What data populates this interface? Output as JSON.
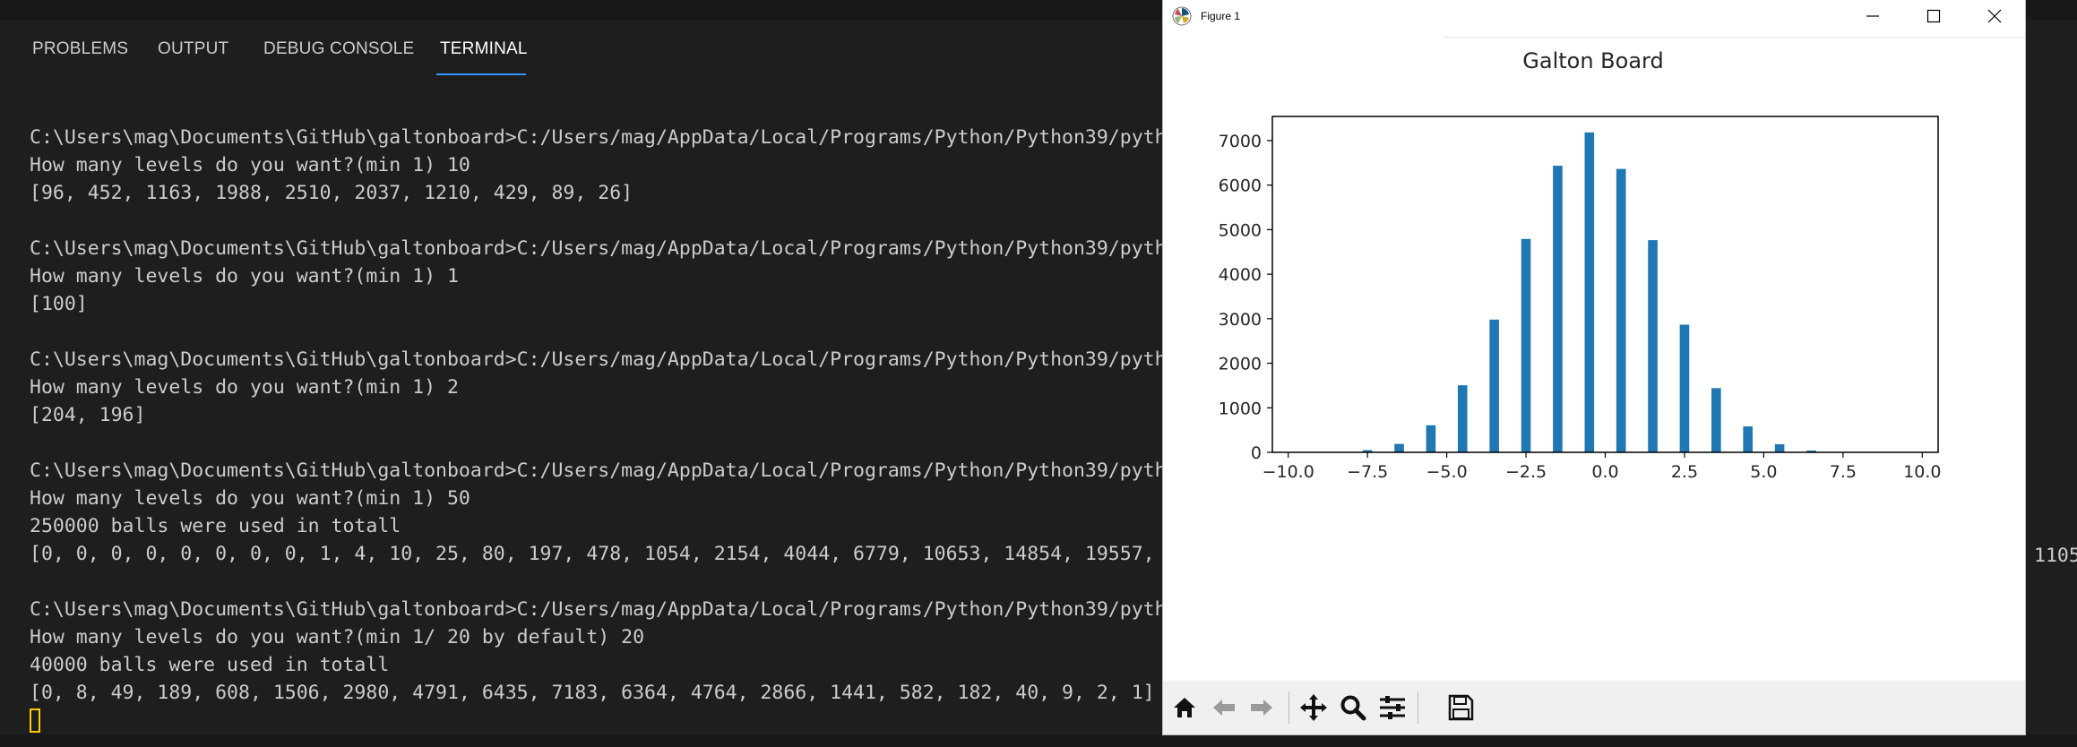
{
  "panel_tabs": [
    {
      "label": "PROBLEMS"
    },
    {
      "label": "OUTPUT"
    },
    {
      "label": "DEBUG CONSOLE"
    },
    {
      "label": "TERMINAL"
    }
  ],
  "terminal": {
    "lines": [
      "C:\\Users\\mag\\Documents\\GitHub\\galtonboard>C:/Users/mag/AppData/Local/Programs/Python/Python39/pyth",
      "How many levels do you want?(min 1) 10",
      "[96, 452, 1163, 1988, 2510, 2037, 1210, 429, 89, 26]",
      "",
      "C:\\Users\\mag\\Documents\\GitHub\\galtonboard>C:/Users/mag/AppData/Local/Programs/Python/Python39/pyth",
      "How many levels do you want?(min 1) 1",
      "[100]",
      "",
      "C:\\Users\\mag\\Documents\\GitHub\\galtonboard>C:/Users/mag/AppData/Local/Programs/Python/Python39/pyth",
      "How many levels do you want?(min 1) 2",
      "[204, 196]",
      "",
      "C:\\Users\\mag\\Documents\\GitHub\\galtonboard>C:/Users/mag/AppData/Local/Programs/Python/Python39/pyth",
      "How many levels do you want?(min 1) 50",
      "250000 balls were used in totall",
      "[0, 0, 0, 0, 0, 0, 0, 0, 1, 4, 10, 25, 80, 197, 478, 1054, 2154, 4044, 6779, 10653, 14854, 19557,",
      "",
      "C:\\Users\\mag\\Documents\\GitHub\\galtonboard>C:/Users/mag/AppData/Local/Programs/Python/Python39/pyth",
      "How many levels do you want?(min 1/ 20 by default) 20",
      "40000 balls were used in totall",
      "[0, 8, 49, 189, 608, 1506, 2980, 4791, 6435, 7183, 6364, 4764, 2866, 1441, 582, 182, 40, 9, 2, 1]"
    ],
    "offscreen_fragment": "1105"
  },
  "figure_window": {
    "title": "Figure 1",
    "icons": {
      "app": "matplotlib-logo-icon",
      "minimize": "minimize-icon",
      "maximize": "maximize-icon",
      "close": "close-icon"
    },
    "toolbar": [
      {
        "name": "home-icon"
      },
      {
        "name": "back-arrow-icon"
      },
      {
        "name": "forward-arrow-icon"
      },
      {
        "name": "pan-icon"
      },
      {
        "name": "zoom-icon"
      },
      {
        "name": "configure-subplots-icon"
      },
      {
        "name": "save-icon"
      }
    ]
  },
  "chart_data": {
    "type": "bar",
    "title": "Galton Board",
    "xlabel": "",
    "ylabel": "",
    "x": [
      -9.5,
      -8.5,
      -7.5,
      -6.5,
      -5.5,
      -4.5,
      -3.5,
      -2.5,
      -1.5,
      -0.5,
      0.5,
      1.5,
      2.5,
      3.5,
      4.5,
      5.5,
      6.5,
      7.5,
      8.5,
      9.5
    ],
    "values": [
      0,
      8,
      49,
      189,
      608,
      1506,
      2980,
      4791,
      6435,
      7183,
      6364,
      4764,
      2866,
      1441,
      582,
      182,
      40,
      9,
      2,
      1
    ],
    "bar_width": 0.3,
    "xlim": [
      -10.5,
      10.5
    ],
    "ylim": [
      0,
      7542
    ],
    "xticks": [
      -10.0,
      -7.5,
      -5.0,
      -2.5,
      0.0,
      2.5,
      5.0,
      7.5,
      10.0
    ],
    "xtick_labels": [
      "−10.0",
      "−7.5",
      "−5.0",
      "−2.5",
      "0.0",
      "2.5",
      "5.0",
      "7.5",
      "10.0"
    ],
    "yticks": [
      0,
      1000,
      2000,
      3000,
      4000,
      5000,
      6000,
      7000
    ],
    "ytick_labels": [
      "0",
      "1000",
      "2000",
      "3000",
      "4000",
      "5000",
      "6000",
      "7000"
    ],
    "grid": false,
    "colors": {
      "bar": "#1f77b4",
      "axes": "#000000"
    }
  }
}
